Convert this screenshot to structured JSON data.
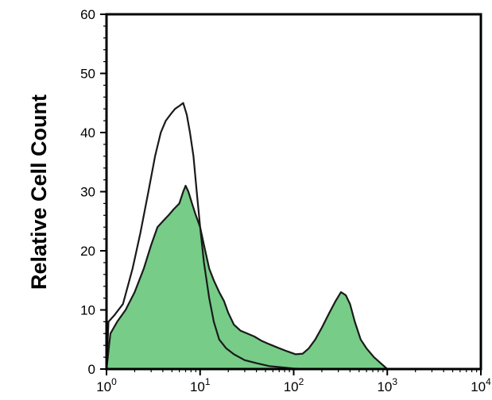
{
  "chart_data": {
    "type": "area",
    "ylabel": "Relative Cell Count",
    "xlabel": "",
    "title": "",
    "x_scale": "log",
    "xlim": [
      1,
      10000
    ],
    "ylim": [
      0,
      60
    ],
    "grid": false,
    "legend": "none",
    "y_ticks": [
      0,
      10,
      20,
      30,
      40,
      50,
      60
    ],
    "x_ticks": [
      {
        "value": 1,
        "base": "10",
        "exp": "0"
      },
      {
        "value": 10,
        "base": "10",
        "exp": "1"
      },
      {
        "value": 100,
        "base": "10",
        "exp": "2"
      },
      {
        "value": 1000,
        "base": "10",
        "exp": "3"
      },
      {
        "value": 10000,
        "base": "10",
        "exp": "4"
      }
    ],
    "series": [
      {
        "style": "filled",
        "fill": "#77cc88",
        "stroke": "#1a1a1a",
        "points": [
          [
            1.0,
            0
          ],
          [
            1.1,
            6
          ],
          [
            1.3,
            8
          ],
          [
            1.6,
            10
          ],
          [
            2.0,
            13
          ],
          [
            2.5,
            17
          ],
          [
            3.0,
            21
          ],
          [
            3.5,
            24
          ],
          [
            4.0,
            25
          ],
          [
            4.6,
            26
          ],
          [
            5.2,
            27
          ],
          [
            6.0,
            28
          ],
          [
            6.6,
            30
          ],
          [
            7.0,
            31
          ],
          [
            7.5,
            30
          ],
          [
            8.2,
            28
          ],
          [
            9.0,
            26
          ],
          [
            10,
            24
          ],
          [
            11,
            21
          ],
          [
            12.5,
            17
          ],
          [
            14,
            15
          ],
          [
            16,
            13
          ],
          [
            18,
            11.5
          ],
          [
            20,
            9.5
          ],
          [
            23,
            7.5
          ],
          [
            27,
            6.5
          ],
          [
            32,
            6
          ],
          [
            38,
            5.5
          ],
          [
            45,
            4.8
          ],
          [
            55,
            4.2
          ],
          [
            68,
            3.6
          ],
          [
            85,
            3
          ],
          [
            105,
            2.5
          ],
          [
            125,
            2.6
          ],
          [
            145,
            3.5
          ],
          [
            170,
            5
          ],
          [
            200,
            7
          ],
          [
            240,
            9.5
          ],
          [
            280,
            11.5
          ],
          [
            320,
            13
          ],
          [
            360,
            12.5
          ],
          [
            400,
            11
          ],
          [
            450,
            8
          ],
          [
            520,
            5
          ],
          [
            600,
            3.5
          ],
          [
            720,
            2
          ],
          [
            850,
            1
          ],
          [
            1000,
            0
          ]
        ]
      },
      {
        "style": "outline",
        "fill": "none",
        "stroke": "#1a1a1a",
        "points": [
          [
            1.0,
            0
          ],
          [
            1.05,
            8
          ],
          [
            1.2,
            9
          ],
          [
            1.5,
            11
          ],
          [
            1.9,
            17
          ],
          [
            2.3,
            23
          ],
          [
            2.8,
            30
          ],
          [
            3.3,
            36
          ],
          [
            3.8,
            40
          ],
          [
            4.3,
            42
          ],
          [
            4.8,
            43
          ],
          [
            5.4,
            44
          ],
          [
            6.0,
            44.5
          ],
          [
            6.6,
            45
          ],
          [
            7.2,
            43
          ],
          [
            7.8,
            40
          ],
          [
            8.5,
            36
          ],
          [
            9.2,
            30
          ],
          [
            10,
            24
          ],
          [
            11,
            18
          ],
          [
            12.5,
            12
          ],
          [
            14,
            8
          ],
          [
            16,
            5
          ],
          [
            19,
            3.5
          ],
          [
            23,
            2.5
          ],
          [
            30,
            1.5
          ],
          [
            40,
            1
          ],
          [
            55,
            0.5
          ],
          [
            75,
            0.3
          ],
          [
            100,
            0.1
          ],
          [
            140,
            0
          ]
        ]
      }
    ]
  }
}
